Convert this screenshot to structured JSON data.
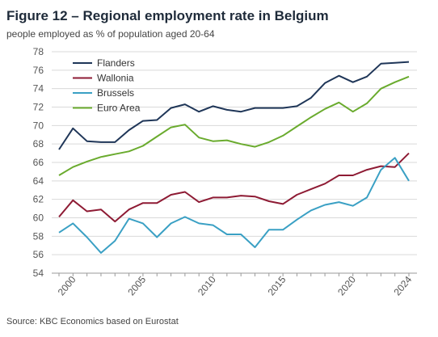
{
  "figure": {
    "title": "Figure 12 – Regional employment rate in Belgium",
    "subtitle": "people employed as % of population aged 20-64",
    "source": "Source: KBC Economics based on Eurostat"
  },
  "chart_data": {
    "type": "line",
    "title": "Figure 12 – Regional employment rate in Belgium",
    "subtitle": "people employed as % of population aged 20-64",
    "xlabel": "",
    "ylabel": "",
    "x": [
      1999,
      2000,
      2001,
      2002,
      2003,
      2004,
      2005,
      2006,
      2007,
      2008,
      2009,
      2010,
      2011,
      2012,
      2013,
      2014,
      2015,
      2016,
      2017,
      2018,
      2019,
      2020,
      2021,
      2022,
      2023,
      2024
    ],
    "xticks": [
      2000,
      2005,
      2010,
      2015,
      2020,
      2024
    ],
    "ylim": [
      54,
      78
    ],
    "yticks": [
      54,
      56,
      58,
      60,
      62,
      64,
      66,
      68,
      70,
      72,
      74,
      76,
      78
    ],
    "grid": "horizontal",
    "legend": "top-left",
    "series": [
      {
        "name": "Flanders",
        "color": "#1f3658",
        "values": [
          67.4,
          69.7,
          68.3,
          68.2,
          68.2,
          69.5,
          70.5,
          70.6,
          71.9,
          72.3,
          71.5,
          72.1,
          71.7,
          71.5,
          71.9,
          71.9,
          71.9,
          72.1,
          73.0,
          74.6,
          75.4,
          74.7,
          75.3,
          76.7,
          76.8,
          76.9
        ]
      },
      {
        "name": "Wallonia",
        "color": "#8e1b34",
        "values": [
          60.1,
          61.9,
          60.7,
          60.9,
          59.6,
          60.9,
          61.6,
          61.6,
          62.5,
          62.8,
          61.7,
          62.2,
          62.2,
          62.4,
          62.3,
          61.8,
          61.5,
          62.5,
          63.1,
          63.7,
          64.6,
          64.6,
          65.2,
          65.6,
          65.5,
          67.0
        ]
      },
      {
        "name": "Brussels",
        "color": "#3aa0c4",
        "values": [
          58.4,
          59.4,
          57.9,
          56.2,
          57.5,
          59.9,
          59.4,
          57.9,
          59.4,
          60.1,
          59.4,
          59.2,
          58.2,
          58.2,
          56.8,
          58.7,
          58.7,
          59.8,
          60.8,
          61.4,
          61.7,
          61.3,
          62.2,
          65.2,
          66.5,
          64.0
        ]
      },
      {
        "name": "Euro Area",
        "color": "#6aab2e",
        "values": [
          64.6,
          65.5,
          66.1,
          66.6,
          66.9,
          67.2,
          67.8,
          68.8,
          69.8,
          70.1,
          68.7,
          68.3,
          68.4,
          68.0,
          67.7,
          68.2,
          68.9,
          69.9,
          70.9,
          71.8,
          72.5,
          71.5,
          72.4,
          74.0,
          74.7,
          75.3
        ]
      }
    ]
  }
}
